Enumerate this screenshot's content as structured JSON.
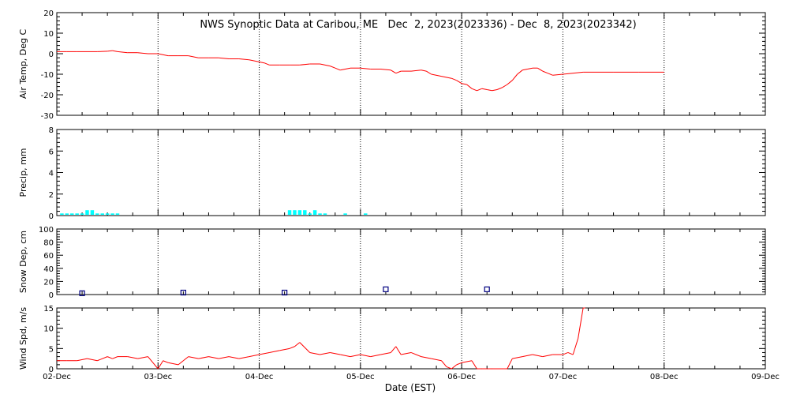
{
  "chart_data": {
    "title": "NWS Synoptic Data at Caribou, ME   Dec  2, 2023(2023336) - Dec  8, 2023(2023342)",
    "xlabel": "Date (EST)",
    "x_ticks": [
      "02-Dec",
      "03-Dec",
      "04-Dec",
      "05-Dec",
      "06-Dec",
      "07-Dec",
      "08-Dec",
      "09-Dec"
    ],
    "xlim": [
      0,
      7
    ],
    "grid": true,
    "panels": [
      {
        "id": "air-temp",
        "type": "line",
        "ylabel": "Air Temp, Deg C",
        "ylim": [
          -30,
          20
        ],
        "yticks": [
          -30,
          -20,
          -10,
          0,
          10,
          20
        ],
        "color": "#ff0000",
        "x": [
          0.0,
          0.1,
          0.2,
          0.3,
          0.4,
          0.5,
          0.55,
          0.6,
          0.7,
          0.8,
          0.9,
          1.0,
          1.1,
          1.2,
          1.3,
          1.4,
          1.5,
          1.6,
          1.7,
          1.8,
          1.9,
          2.0,
          2.05,
          2.1,
          2.2,
          2.3,
          2.4,
          2.5,
          2.6,
          2.7,
          2.75,
          2.8,
          2.9,
          3.0,
          3.1,
          3.2,
          3.3,
          3.35,
          3.4,
          3.5,
          3.6,
          3.65,
          3.7,
          3.8,
          3.9,
          3.95,
          4.0,
          4.05,
          4.1,
          4.15,
          4.2,
          4.25,
          4.3,
          4.35,
          4.4,
          4.45,
          4.5,
          4.55,
          4.6,
          4.65,
          4.7,
          4.75,
          4.8,
          4.85,
          4.9,
          5.0,
          5.2,
          5.5,
          5.75,
          6.0
        ],
        "y": [
          1,
          1,
          1,
          1,
          1,
          1.2,
          1.5,
          1,
          0.5,
          0.5,
          0,
          0,
          -1,
          -1,
          -1,
          -2,
          -2,
          -2,
          -2.5,
          -2.5,
          -3,
          -4,
          -4.5,
          -5.5,
          -5.5,
          -5.5,
          -5.5,
          -5,
          -5,
          -6,
          -7,
          -8,
          -7,
          -7,
          -7.5,
          -7.5,
          -8,
          -9.5,
          -8.5,
          -8.5,
          -8,
          -8.5,
          -10,
          -11,
          -12,
          -13,
          -14.5,
          -15,
          -17,
          -18,
          -17,
          -17.5,
          -18,
          -17.5,
          -16.5,
          -15,
          -13,
          -10,
          -8,
          -7.5,
          -7,
          -7,
          -8.5,
          -9.5,
          -10.5,
          -10,
          -9,
          -9,
          -9,
          -9
        ]
      },
      {
        "id": "precip",
        "type": "bar",
        "ylabel": "Precip, mm",
        "ylim": [
          0,
          8
        ],
        "yticks": [
          0,
          2,
          4,
          6,
          8
        ],
        "color": "#00ffff",
        "bar_width": 0.035,
        "x": [
          0.05,
          0.1,
          0.15,
          0.2,
          0.25,
          0.3,
          0.35,
          0.4,
          0.45,
          0.5,
          0.55,
          0.6,
          2.3,
          2.35,
          2.4,
          2.45,
          2.5,
          2.55,
          2.6,
          2.65,
          2.85,
          3.05
        ],
        "values": [
          0.2,
          0.2,
          0.2,
          0.2,
          0.2,
          0.5,
          0.5,
          0.2,
          0.2,
          0.2,
          0.2,
          0.2,
          0.5,
          0.5,
          0.5,
          0.5,
          0.2,
          0.5,
          0.2,
          0.2,
          0.2,
          0.2
        ]
      },
      {
        "id": "snow-depth",
        "type": "scatter",
        "ylabel": "Snow Dep, cm",
        "ylim": [
          0,
          100
        ],
        "yticks": [
          0,
          20,
          40,
          60,
          80,
          100
        ],
        "color": "#000080",
        "x": [
          0.25,
          1.25,
          2.25,
          3.25,
          4.25
        ],
        "y": [
          2,
          3,
          3,
          8,
          8
        ]
      },
      {
        "id": "wind-speed",
        "type": "line",
        "ylabel": "Wind Spd, m/s",
        "ylim": [
          0,
          15
        ],
        "yticks": [
          0,
          5,
          10,
          15
        ],
        "color": "#ff0000",
        "x": [
          0.0,
          0.1,
          0.2,
          0.3,
          0.4,
          0.5,
          0.55,
          0.6,
          0.7,
          0.8,
          0.9,
          0.95,
          1.0,
          1.05,
          1.1,
          1.2,
          1.25,
          1.3,
          1.4,
          1.5,
          1.6,
          1.7,
          1.8,
          1.9,
          2.0,
          2.1,
          2.2,
          2.3,
          2.35,
          2.4,
          2.5,
          2.6,
          2.7,
          2.8,
          2.9,
          3.0,
          3.1,
          3.2,
          3.3,
          3.35,
          3.4,
          3.5,
          3.6,
          3.7,
          3.8,
          3.85,
          3.9,
          3.95,
          4.0,
          4.1,
          4.15,
          4.2,
          4.25,
          4.3,
          4.4,
          4.45,
          4.5,
          4.6,
          4.7,
          4.8,
          4.9,
          5.0,
          5.05,
          5.1,
          5.15,
          5.2,
          5.22
        ],
        "y": [
          2,
          2,
          2,
          2.5,
          2,
          3,
          2.5,
          3,
          3,
          2.5,
          3,
          1.5,
          0,
          2,
          1.5,
          1,
          2,
          3,
          2.5,
          3,
          2.5,
          3,
          2.5,
          3,
          3.5,
          4,
          4.5,
          5,
          5.5,
          6.5,
          4,
          3.5,
          4,
          3.5,
          3,
          3.5,
          3,
          3.5,
          4,
          5.5,
          3.5,
          4,
          3,
          2.5,
          2,
          0.5,
          0,
          1,
          1.5,
          2,
          0,
          0,
          0,
          0,
          0,
          0,
          2.5,
          3,
          3.5,
          3,
          3.5,
          3.5,
          4,
          3.5,
          7.5,
          15,
          16
        ]
      }
    ]
  }
}
